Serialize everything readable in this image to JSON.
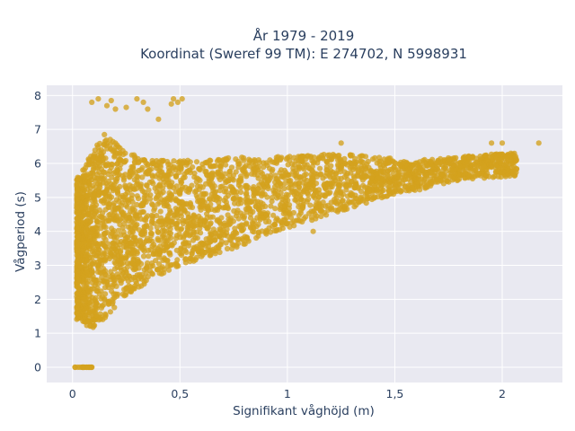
{
  "chart_data": {
    "type": "scatter",
    "title_lines": [
      "År 1979 - 2019",
      "Koordinat (Sweref 99 TM): E 274702, N 5998931"
    ],
    "xlabel": "Signifikant våghöjd (m)",
    "ylabel": "Vågperiod (s)",
    "xlim": [
      -0.12,
      2.28
    ],
    "ylim": [
      -0.45,
      8.3
    ],
    "x_ticks": [
      0,
      0.5,
      1,
      1.5,
      2
    ],
    "x_tick_labels": [
      "0",
      "0,5",
      "1",
      "1,5",
      "2"
    ],
    "y_ticks": [
      0,
      1,
      2,
      3,
      4,
      5,
      6,
      7,
      8
    ],
    "y_tick_labels": [
      "0",
      "1",
      "2",
      "3",
      "4",
      "5",
      "6",
      "7",
      "8"
    ],
    "grid": true,
    "legend": "none",
    "colors": {
      "marker": "#d4a21d",
      "plot_bg": "#e9e9f1",
      "grid": "#ffffff",
      "text": "#2a3f5f"
    },
    "point_count_approx": 200000,
    "density_envelope": [
      {
        "x": 0.03,
        "y_min": 1.4,
        "y_max": 5.6
      },
      {
        "x": 0.08,
        "y_min": 1.1,
        "y_max": 6.2
      },
      {
        "x": 0.15,
        "y_min": 1.4,
        "y_max": 6.9
      },
      {
        "x": 0.25,
        "y_min": 2.1,
        "y_max": 6.3
      },
      {
        "x": 0.4,
        "y_min": 2.7,
        "y_max": 6.1
      },
      {
        "x": 0.6,
        "y_min": 3.2,
        "y_max": 6.1
      },
      {
        "x": 0.8,
        "y_min": 3.6,
        "y_max": 6.2
      },
      {
        "x": 1.0,
        "y_min": 4.1,
        "y_max": 6.2
      },
      {
        "x": 1.2,
        "y_min": 4.5,
        "y_max": 6.3
      },
      {
        "x": 1.4,
        "y_min": 4.9,
        "y_max": 6.2
      },
      {
        "x": 1.6,
        "y_min": 5.2,
        "y_max": 6.1
      },
      {
        "x": 1.8,
        "y_min": 5.5,
        "y_max": 6.2
      },
      {
        "x": 2.0,
        "y_min": 5.6,
        "y_max": 6.3
      }
    ],
    "zero_period_points": {
      "y": 0,
      "x_range": [
        0.01,
        0.09
      ]
    },
    "outliers": [
      [
        0.09,
        7.8
      ],
      [
        0.12,
        7.9
      ],
      [
        0.16,
        7.7
      ],
      [
        0.18,
        7.85
      ],
      [
        0.2,
        7.6
      ],
      [
        0.3,
        7.9
      ],
      [
        0.33,
        7.8
      ],
      [
        0.4,
        7.3
      ],
      [
        0.47,
        7.9
      ],
      [
        0.51,
        7.9
      ],
      [
        0.46,
        7.75
      ],
      [
        1.25,
        6.6
      ],
      [
        1.95,
        6.6
      ],
      [
        2.0,
        6.6
      ],
      [
        2.17,
        6.6
      ],
      [
        2.04,
        6.3
      ],
      [
        1.12,
        4.0
      ],
      [
        0.35,
        7.6
      ],
      [
        0.25,
        7.65
      ],
      [
        0.49,
        7.8
      ]
    ]
  }
}
